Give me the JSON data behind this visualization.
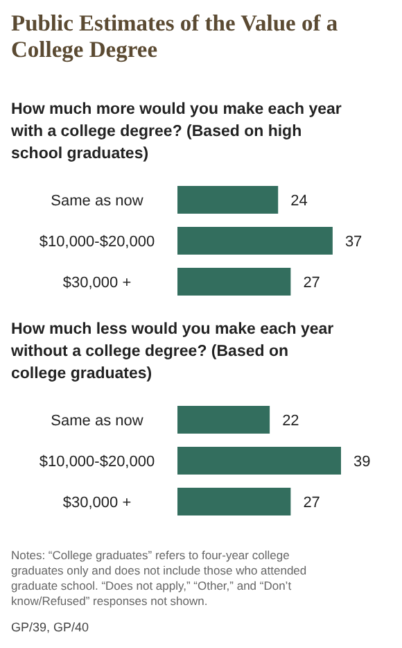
{
  "chart_data": [
    {
      "type": "bar",
      "orientation": "horizontal",
      "title": "Public Estimates of the Value of a College Degree",
      "subtitle": "How much more would you make each year with a college degree? (Based on high school graduates)",
      "categories": [
        "Same as now",
        "$10,000-$20,000",
        "$30,000 +"
      ],
      "values": [
        24,
        37,
        27
      ],
      "color": "#336e5e",
      "data_labels": true
    },
    {
      "type": "bar",
      "orientation": "horizontal",
      "subtitle": "How much less would you make  each year without a college degree? (Based on college graduates)",
      "categories": [
        "Same as now",
        "$10,000-$20,000",
        "$30,000 +"
      ],
      "values": [
        22,
        39,
        27
      ],
      "color": "#336e5e",
      "data_labels": true,
      "annotations": [
        "Notes: “College graduates” refers to four-year college graduates only and does not include those who attended graduate school. “Does not apply,” “Other,” and “Don’t know/Refused” responses not shown.",
        "GP/39, GP/40"
      ]
    }
  ]
}
